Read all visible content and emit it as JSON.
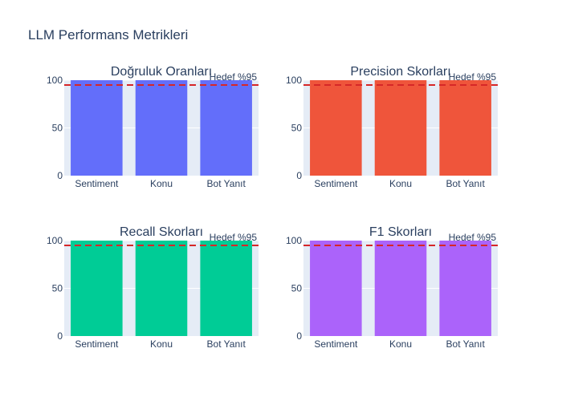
{
  "title": "LLM Performans Metrikleri",
  "chart_data": [
    {
      "type": "bar",
      "title": "Doğruluk Oranları",
      "categories": [
        "Sentiment",
        "Konu",
        "Bot Yanıt"
      ],
      "values": [
        100,
        100,
        100
      ],
      "color": "#636efa",
      "ylim": [
        0,
        100
      ],
      "yticks": [
        0,
        50,
        100
      ],
      "target_line": {
        "value": 95,
        "label": "Hedef %95",
        "color": "#d62728",
        "style": "dashed"
      },
      "grid": true
    },
    {
      "type": "bar",
      "title": "Precision Skorları",
      "categories": [
        "Sentiment",
        "Konu",
        "Bot Yanıt"
      ],
      "values": [
        100,
        100,
        100
      ],
      "color": "#ef553b",
      "ylim": [
        0,
        100
      ],
      "yticks": [
        0,
        50,
        100
      ],
      "target_line": {
        "value": 95,
        "label": "Hedef %95",
        "color": "#d62728",
        "style": "dashed"
      },
      "grid": true
    },
    {
      "type": "bar",
      "title": "Recall Skorları",
      "categories": [
        "Sentiment",
        "Konu",
        "Bot Yanıt"
      ],
      "values": [
        100,
        100,
        100
      ],
      "color": "#00cc96",
      "ylim": [
        0,
        100
      ],
      "yticks": [
        0,
        50,
        100
      ],
      "target_line": {
        "value": 95,
        "label": "Hedef %95",
        "color": "#d62728",
        "style": "dashed"
      },
      "grid": true
    },
    {
      "type": "bar",
      "title": "F1 Skorları",
      "categories": [
        "Sentiment",
        "Konu",
        "Bot Yanıt"
      ],
      "values": [
        100,
        100,
        100
      ],
      "color": "#ab63fa",
      "ylim": [
        0,
        100
      ],
      "yticks": [
        0,
        50,
        100
      ],
      "target_line": {
        "value": 95,
        "label": "Hedef %95",
        "color": "#d62728",
        "style": "dashed"
      },
      "grid": true
    }
  ]
}
